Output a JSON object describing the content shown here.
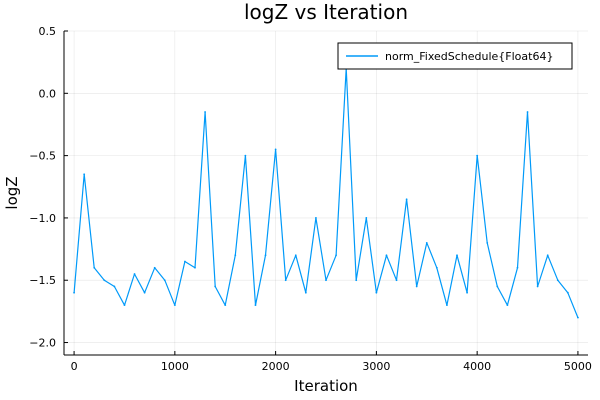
{
  "chart_data": {
    "type": "line",
    "title": "logZ vs Iteration",
    "xlabel": "Iteration",
    "ylabel": "logZ",
    "xlim": [
      -100,
      5100
    ],
    "ylim": [
      -2.1,
      0.5
    ],
    "xticks": [
      0,
      1000,
      2000,
      3000,
      4000,
      5000
    ],
    "xtick_labels": [
      "0",
      "1000",
      "2000",
      "3000",
      "4000",
      "5000"
    ],
    "yticks": [
      -2.0,
      -1.5,
      -1.0,
      -0.5,
      0.0,
      0.5
    ],
    "ytick_labels": [
      "−2.0",
      "−1.5",
      "−1.0",
      "−0.5",
      "0.0",
      "0.5"
    ],
    "grid": true,
    "legend_position": "top-right",
    "series": [
      {
        "name": "norm_FixedSchedule{Float64}",
        "color": "#009af9",
        "x": [
          0,
          100,
          200,
          300,
          400,
          500,
          600,
          700,
          800,
          900,
          1000,
          1100,
          1200,
          1300,
          1400,
          1500,
          1600,
          1700,
          1800,
          1900,
          2000,
          2100,
          2200,
          2300,
          2400,
          2500,
          2600,
          2700,
          2800,
          2900,
          3000,
          3100,
          3200,
          3300,
          3400,
          3500,
          3600,
          3700,
          3800,
          3900,
          4000,
          4100,
          4200,
          4300,
          4400,
          4500,
          4600,
          4700,
          4800,
          4900,
          5000
        ],
        "values": [
          -1.6,
          -0.65,
          -1.4,
          -1.5,
          -1.55,
          -1.7,
          -1.45,
          -1.6,
          -1.4,
          -1.5,
          -1.7,
          -1.35,
          -1.4,
          -0.15,
          -1.55,
          -1.7,
          -1.3,
          -0.5,
          -1.7,
          -1.3,
          -0.45,
          -1.5,
          -1.3,
          -1.6,
          -1.0,
          -1.5,
          -1.3,
          0.2,
          -1.5,
          -1.0,
          -1.6,
          -1.3,
          -1.5,
          -0.85,
          -1.55,
          -1.2,
          -1.4,
          -1.7,
          -1.3,
          -1.6,
          -0.5,
          -1.2,
          -1.55,
          -1.7,
          -1.4,
          -0.15,
          -1.55,
          -1.3,
          -1.5,
          -1.6,
          -1.8
        ]
      }
    ]
  }
}
